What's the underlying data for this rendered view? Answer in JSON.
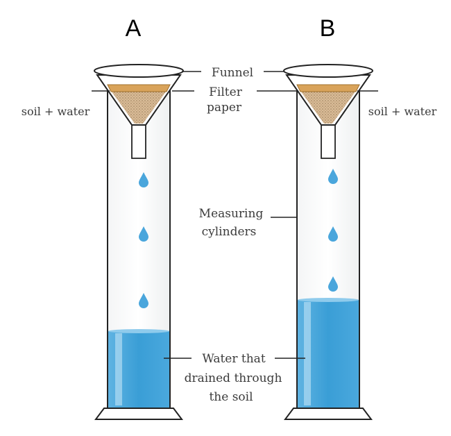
{
  "title_a": "A",
  "title_b": "B",
  "labels": {
    "funnel": "Funnel",
    "filter_line1": "Filter",
    "filter_line2": "paper",
    "soil_water_left": "soil + water",
    "soil_water_right": "soil + water",
    "measuring_line1": "Measuring",
    "measuring_line2": "cylinders",
    "drained_line1": "Water that",
    "drained_line2": "drained through",
    "drained_line3": "the soil"
  },
  "cylinders": [
    {
      "id": "A",
      "water_fraction": 0.24,
      "drops": 3
    },
    {
      "id": "B",
      "water_fraction": 0.34,
      "drops": 3
    }
  ],
  "colors": {
    "water": "#3a9ed6",
    "water_light": "#8fcbec",
    "soil": "#c9a882",
    "filter": "#d9a35a",
    "outline": "#222222",
    "drop": "#4aa6dc"
  }
}
